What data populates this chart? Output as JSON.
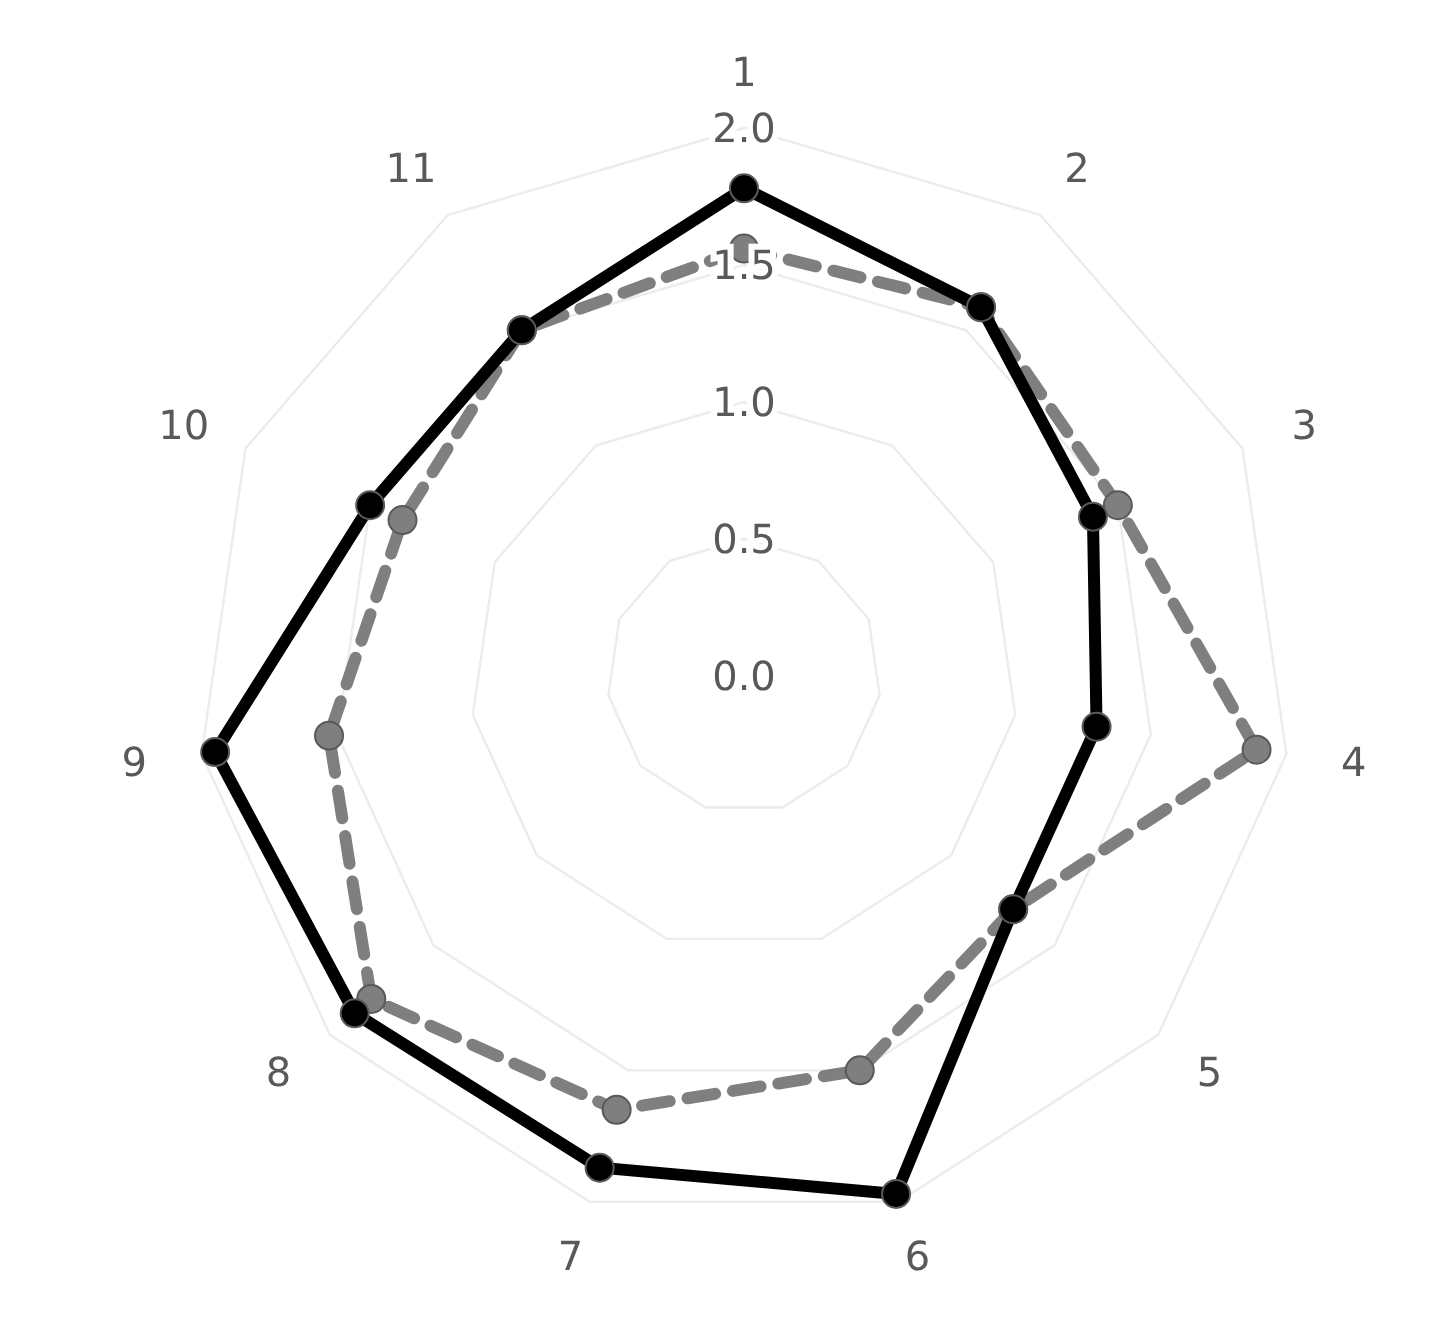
{
  "chart_data": {
    "type": "radar",
    "categories": [
      "1",
      "2",
      "3",
      "4",
      "5",
      "6",
      "7",
      "8",
      "9",
      "10",
      "11"
    ],
    "series": [
      {
        "color": "#000000",
        "line_style": "solid",
        "values": [
          1.78,
          1.6,
          1.4,
          1.3,
          1.3,
          1.97,
          1.87,
          1.88,
          1.95,
          1.5,
          1.5
        ]
      },
      {
        "color": "#7f7f7f",
        "line_style": "dashed",
        "values": [
          1.56,
          1.6,
          1.5,
          1.89,
          1.3,
          1.5,
          1.65,
          1.8,
          1.53,
          1.37,
          1.5
        ]
      }
    ],
    "ylim": [
      0,
      2
    ],
    "yticks": [
      {
        "value": 0,
        "label": "0.0"
      },
      0.5,
      {
        "value": 1,
        "label": "1.0"
      },
      1.5,
      {
        "value": 2,
        "label": "2.0"
      }
    ],
    "grid": true,
    "marker": "circle"
  }
}
